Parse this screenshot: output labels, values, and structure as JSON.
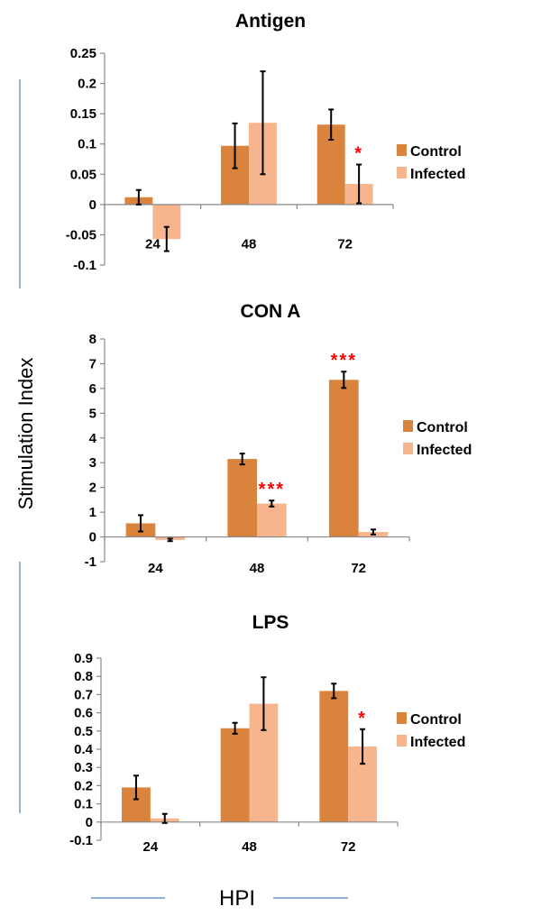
{
  "chart_data": [
    {
      "type": "bar",
      "title": "Antigen",
      "categories": [
        "24",
        "48",
        "72"
      ],
      "ylim": [
        -0.1,
        0.25
      ],
      "yticks": [
        "0.25",
        "0.2",
        "0.15",
        "0.1",
        "0.05",
        "0",
        "-0.05",
        "-0.1"
      ],
      "ytick_values": [
        0.25,
        0.2,
        0.15,
        0.1,
        0.05,
        0,
        -0.05,
        -0.1
      ],
      "legend": "right",
      "series": [
        {
          "name": "Control",
          "color": "#D9833D",
          "values": [
            0.012,
            0.097,
            0.132
          ],
          "errors": [
            0.012,
            0.037,
            0.025
          ],
          "significance": [
            "",
            "",
            ""
          ]
        },
        {
          "name": "Infected",
          "color": "#F7B58E",
          "values": [
            -0.057,
            0.135,
            0.034
          ],
          "errors": [
            0.02,
            0.085,
            0.032
          ],
          "significance": [
            "",
            "",
            "*"
          ]
        }
      ]
    },
    {
      "type": "bar",
      "title": "CON A",
      "categories": [
        "24",
        "48",
        "72"
      ],
      "ylim": [
        -1,
        8
      ],
      "yticks": [
        "8",
        "7",
        "6",
        "5",
        "4",
        "3",
        "2",
        "1",
        "0",
        "-1"
      ],
      "ytick_values": [
        8,
        7,
        6,
        5,
        4,
        3,
        2,
        1,
        0,
        -1
      ],
      "legend": "right",
      "series": [
        {
          "name": "Control",
          "color": "#D9833D",
          "values": [
            0.55,
            3.15,
            6.35
          ],
          "errors": [
            0.33,
            0.22,
            0.33
          ],
          "significance": [
            "",
            "",
            "***"
          ]
        },
        {
          "name": "Infected",
          "color": "#F7B58E",
          "values": [
            -0.12,
            1.35,
            0.2
          ],
          "errors": [
            0.05,
            0.12,
            0.1
          ],
          "significance": [
            "",
            "***",
            ""
          ]
        }
      ]
    },
    {
      "type": "bar",
      "title": "LPS",
      "categories": [
        "24",
        "48",
        "72"
      ],
      "ylim": [
        -0.1,
        0.9
      ],
      "yticks": [
        "0.9",
        "0.8",
        "0.7",
        "0.6",
        "0.5",
        "0.4",
        "0.3",
        "0.2",
        "0.1",
        "0",
        "-0.1"
      ],
      "ytick_values": [
        0.9,
        0.8,
        0.7,
        0.6,
        0.5,
        0.4,
        0.3,
        0.2,
        0.1,
        0,
        -0.1
      ],
      "legend": "right",
      "series": [
        {
          "name": "Control",
          "color": "#D9833D",
          "values": [
            0.19,
            0.515,
            0.72
          ],
          "errors": [
            0.065,
            0.03,
            0.04
          ],
          "significance": [
            "",
            "",
            ""
          ]
        },
        {
          "name": "Infected",
          "color": "#F7B58E",
          "values": [
            0.02,
            0.65,
            0.415
          ],
          "errors": [
            0.025,
            0.145,
            0.095
          ],
          "significance": [
            "",
            "",
            "*"
          ]
        }
      ]
    }
  ],
  "ylabel": "Stimulation Index",
  "xlabel": "HPI",
  "colors": {
    "decor_line": "#6A9BD1",
    "axis": "#888888"
  }
}
